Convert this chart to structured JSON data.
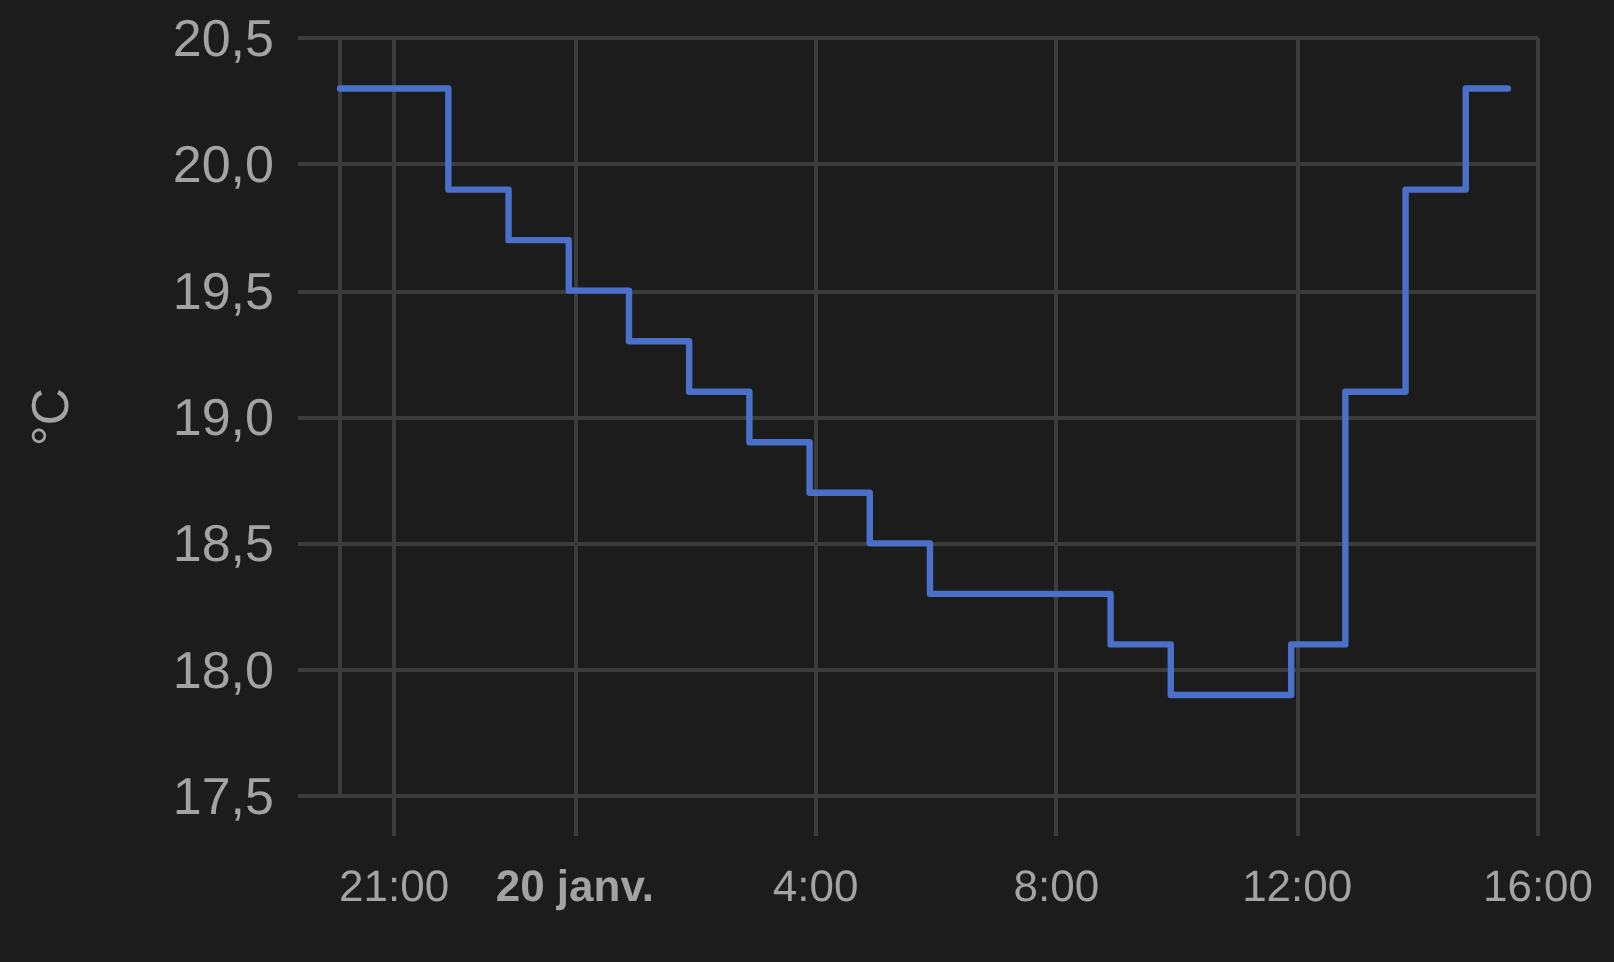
{
  "chart_data": {
    "type": "step",
    "ylabel": "°C",
    "color": "#4b70c9",
    "x": [
      "--01-19T20:06",
      "--01-19T21:54",
      "--01-19T22:54",
      "--01-19T23:54",
      "--01-20T00:54",
      "--01-20T01:54",
      "--01-20T02:54",
      "--01-20T03:54",
      "--01-20T04:54",
      "--01-20T05:54",
      "--01-20T08:54",
      "--01-20T09:54",
      "--01-20T11:54",
      "--01-20T12:48",
      "--01-20T13:48",
      "--01-20T14:48",
      "--01-20T15:30"
    ],
    "values": [
      20.3,
      19.9,
      19.7,
      19.5,
      19.3,
      19.1,
      18.9,
      18.7,
      18.5,
      18.3,
      18.1,
      17.9,
      18.1,
      19.1,
      19.9,
      20.3,
      20.3
    ],
    "xlim": [
      "--01-19T20:06",
      "--01-20T16:00"
    ],
    "xticks": [
      {
        "value": "--01-19T21:00",
        "label": "21:00"
      },
      {
        "value": "--01-20",
        "label": "20 janv."
      },
      {
        "value": "--01-20T04:00",
        "label": "4:00"
      },
      {
        "value": "--01-20T08:00",
        "label": "8:00"
      },
      {
        "value": "--01-20T12:00",
        "label": "12:00"
      },
      {
        "value": "--01-20T16:00",
        "label": "16:00"
      }
    ],
    "ylim": [
      17.5,
      20.5
    ],
    "yticks": [
      {
        "value": 17.5,
        "label": "17,5"
      },
      {
        "value": 18,
        "label": "18,0"
      },
      {
        "value": 18.5,
        "label": "18,5"
      },
      {
        "value": 19,
        "label": "19,0"
      },
      {
        "value": 19.5,
        "label": "19,5"
      },
      {
        "value": 20,
        "label": "20,0"
      },
      {
        "value": 20.5,
        "label": "20,5"
      }
    ],
    "grid": true,
    "marker": "none"
  }
}
